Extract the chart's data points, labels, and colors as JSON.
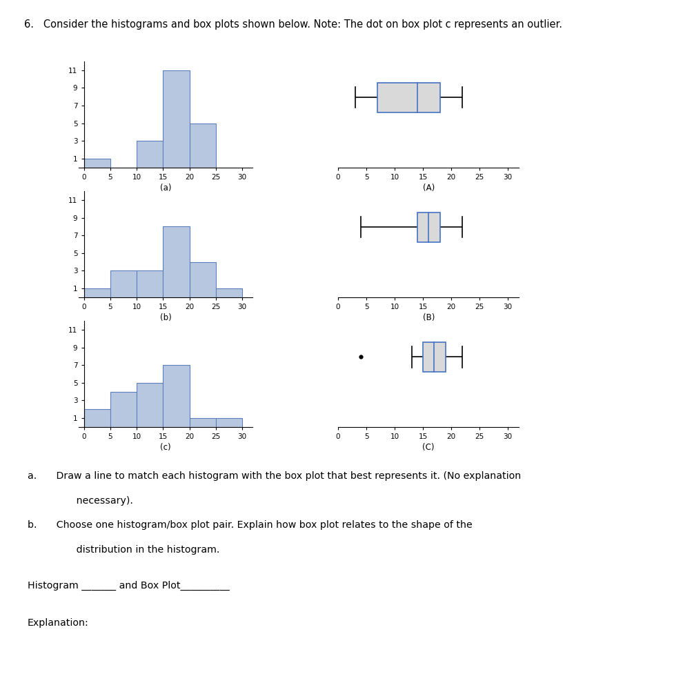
{
  "title": "6.   Consider the histograms and box plots shown below. Note: The dot on box plot c represents an outlier.",
  "hist_a": [
    1,
    0,
    3,
    11,
    5,
    0
  ],
  "hist_b": [
    1,
    3,
    3,
    8,
    4,
    1
  ],
  "hist_c": [
    2,
    4,
    5,
    7,
    1,
    1
  ],
  "hist_bins": [
    0,
    5,
    10,
    15,
    20,
    25,
    30
  ],
  "hist_color": "#b8c7e0",
  "hist_edge_color": "#5b7fbc",
  "box_A": {
    "min": 3,
    "q1": 7,
    "median": 14,
    "q3": 18,
    "max": 22
  },
  "box_B": {
    "min": 4,
    "q1": 14,
    "median": 16,
    "q3": 18,
    "max": 22
  },
  "box_C": {
    "outlier": 4,
    "min": 13,
    "q1": 15,
    "median": 17,
    "q3": 19,
    "max": 22
  },
  "box_color": "#d9d9d9",
  "box_edge_color": "#4472c4",
  "box_line_color": "#000000",
  "text_a": "(a)",
  "text_b": "(b)",
  "text_c": "(c)",
  "text_A": "(A)",
  "text_B": "(B)",
  "text_C": "(C)",
  "sq_a": "a.  Draw a line to match each histogram with the box plot that best represents it. (No explanation",
  "sq_a2": "     necessary).",
  "sq_b": "b.  Choose one histogram/box plot pair. Explain how box plot relates to the shape of the",
  "sq_b2": "     distribution in the histogram.",
  "line1": "Histogram _______ and Box Plot__________",
  "line2": "Explanation:"
}
